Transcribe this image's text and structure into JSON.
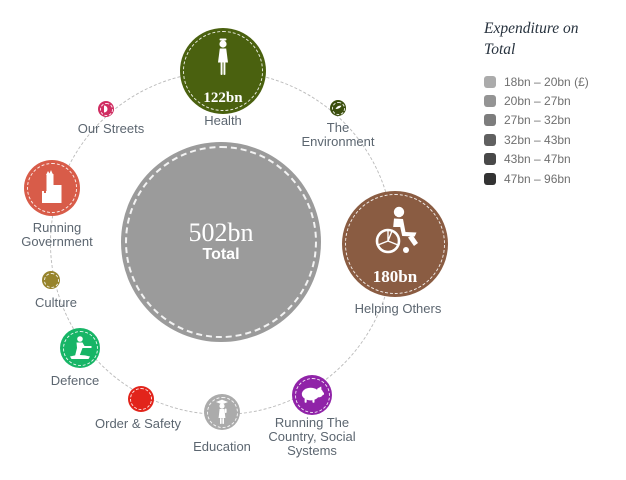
{
  "legend": {
    "title_line1": "Expenditure on",
    "title_line2": "Total",
    "items": [
      {
        "label": "18bn – 20bn (£)",
        "color": "#ababab"
      },
      {
        "label": "20bn – 27bn",
        "color": "#949494"
      },
      {
        "label": "27bn – 32bn",
        "color": "#7d7d7d"
      },
      {
        "label": "32bn – 43bn",
        "color": "#606060"
      },
      {
        "label": "43bn – 47bn",
        "color": "#494949"
      },
      {
        "label": "47bn – 96bn",
        "color": "#333333"
      }
    ]
  },
  "center": {
    "value": "502bn",
    "label": "Total",
    "color": "#9b9b9b"
  },
  "bubbles": {
    "health": {
      "label": "Health",
      "value": "122bn",
      "color": "#4a610f"
    },
    "environment": {
      "label_line1": "The",
      "label_line2": "Environment",
      "color": "#3b4f0e"
    },
    "helping": {
      "label": "Helping Others",
      "value": "180bn",
      "color": "#8a5c42"
    },
    "country": {
      "label_line1": "Running The",
      "label_line2": "Country, Social",
      "label_line3": "Systems",
      "color": "#9023a8"
    },
    "education": {
      "label": "Education",
      "color": "#ababab"
    },
    "order": {
      "label": "Order & Safety",
      "color": "#e2241b"
    },
    "defence": {
      "label": "Defence",
      "color": "#17b566"
    },
    "culture": {
      "label": "Culture",
      "color": "#97842c"
    },
    "government": {
      "label_line1": "Running",
      "label_line2": "Government",
      "color": "#d85c49"
    },
    "streets": {
      "label": "Our Streets",
      "color": "#d02e62"
    }
  },
  "chart_data": {
    "type": "bubble",
    "title": "Expenditure on Total",
    "center": {
      "label": "Total",
      "value_label": "502bn"
    },
    "categories": [
      "Health",
      "The Environment",
      "Helping Others",
      "Running The Country, Social Systems",
      "Education",
      "Order & Safety",
      "Defence",
      "Culture",
      "Running Government",
      "Our Streets"
    ],
    "value_labels": [
      "122bn",
      null,
      "180bn",
      null,
      null,
      null,
      null,
      null,
      null,
      null
    ],
    "bubble_colors": [
      "#4a610f",
      "#3b4f0e",
      "#8a5c42",
      "#9023a8",
      "#ababab",
      "#e2241b",
      "#17b566",
      "#97842c",
      "#d85c49",
      "#d02e62"
    ],
    "legend_bins": [
      "18bn – 20bn (£)",
      "20bn – 27bn",
      "27bn – 32bn",
      "32bn – 43bn",
      "43bn – 47bn",
      "47bn – 96bn"
    ],
    "legend_colors": [
      "#ababab",
      "#949494",
      "#7d7d7d",
      "#606060",
      "#494949",
      "#333333"
    ],
    "layout": "circular orbit of category bubbles around a central total bubble; bubble size encodes expenditure; legend at top right"
  }
}
